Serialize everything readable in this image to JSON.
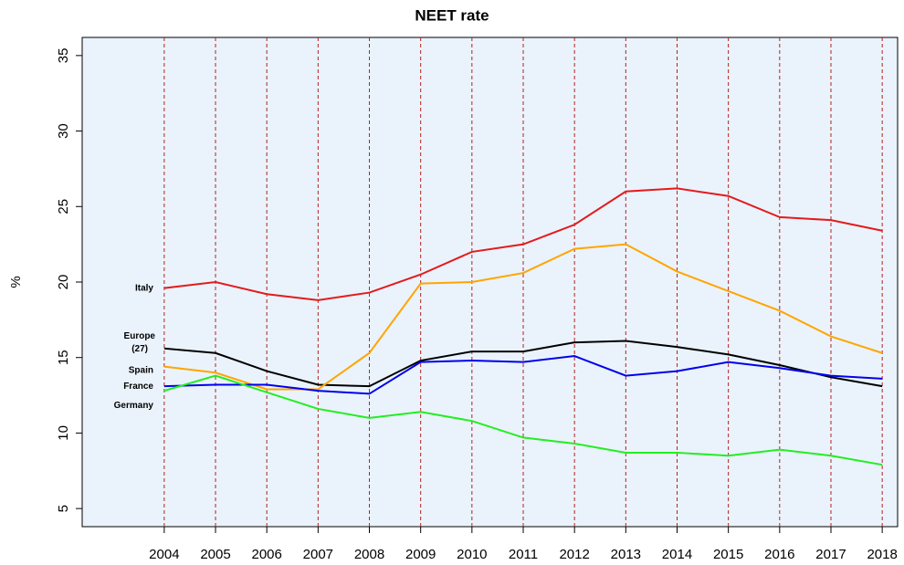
{
  "chart_data": {
    "type": "line",
    "title": "NEET rate",
    "ylabel": "%",
    "x": [
      2004,
      2005,
      2006,
      2007,
      2008,
      2009,
      2010,
      2011,
      2012,
      2013,
      2014,
      2015,
      2016,
      2017,
      2018
    ],
    "xlim": [
      2002.4,
      2018.3
    ],
    "xticks": [
      2004,
      2005,
      2006,
      2007,
      2008,
      2009,
      2010,
      2011,
      2012,
      2013,
      2014,
      2015,
      2016,
      2017,
      2018
    ],
    "ylim": [
      3.8,
      36.2
    ],
    "yticks": [
      5,
      10,
      15,
      20,
      25,
      30,
      35
    ],
    "grid": true,
    "series": [
      {
        "name": "Italy",
        "color": "#e41a1c",
        "values": [
          19.6,
          20.0,
          19.2,
          18.8,
          19.3,
          20.5,
          22.0,
          22.5,
          23.8,
          26.0,
          26.2,
          25.7,
          24.3,
          24.1,
          23.4
        ]
      },
      {
        "name": "Europe (27)",
        "color": "#000000",
        "values": [
          15.6,
          15.3,
          14.1,
          13.2,
          13.1,
          14.8,
          15.4,
          15.4,
          16.0,
          16.1,
          15.7,
          15.2,
          14.5,
          13.7,
          13.1
        ]
      },
      {
        "name": "Spain",
        "color": "#ffa500",
        "values": [
          14.4,
          14.0,
          12.9,
          12.9,
          15.3,
          19.9,
          20.0,
          20.6,
          22.2,
          22.5,
          20.7,
          19.4,
          18.1,
          16.4,
          15.3
        ]
      },
      {
        "name": "France",
        "color": "#0000ee",
        "values": [
          13.1,
          13.2,
          13.2,
          12.8,
          12.6,
          14.7,
          14.8,
          14.7,
          15.1,
          13.8,
          14.1,
          14.7,
          14.3,
          13.8,
          13.6
        ]
      },
      {
        "name": "Germany",
        "color": "#22ee22",
        "values": [
          12.8,
          13.8,
          12.7,
          11.6,
          11.0,
          11.4,
          10.8,
          9.7,
          9.3,
          8.7,
          8.7,
          8.5,
          8.9,
          8.5,
          7.9
        ]
      }
    ]
  }
}
